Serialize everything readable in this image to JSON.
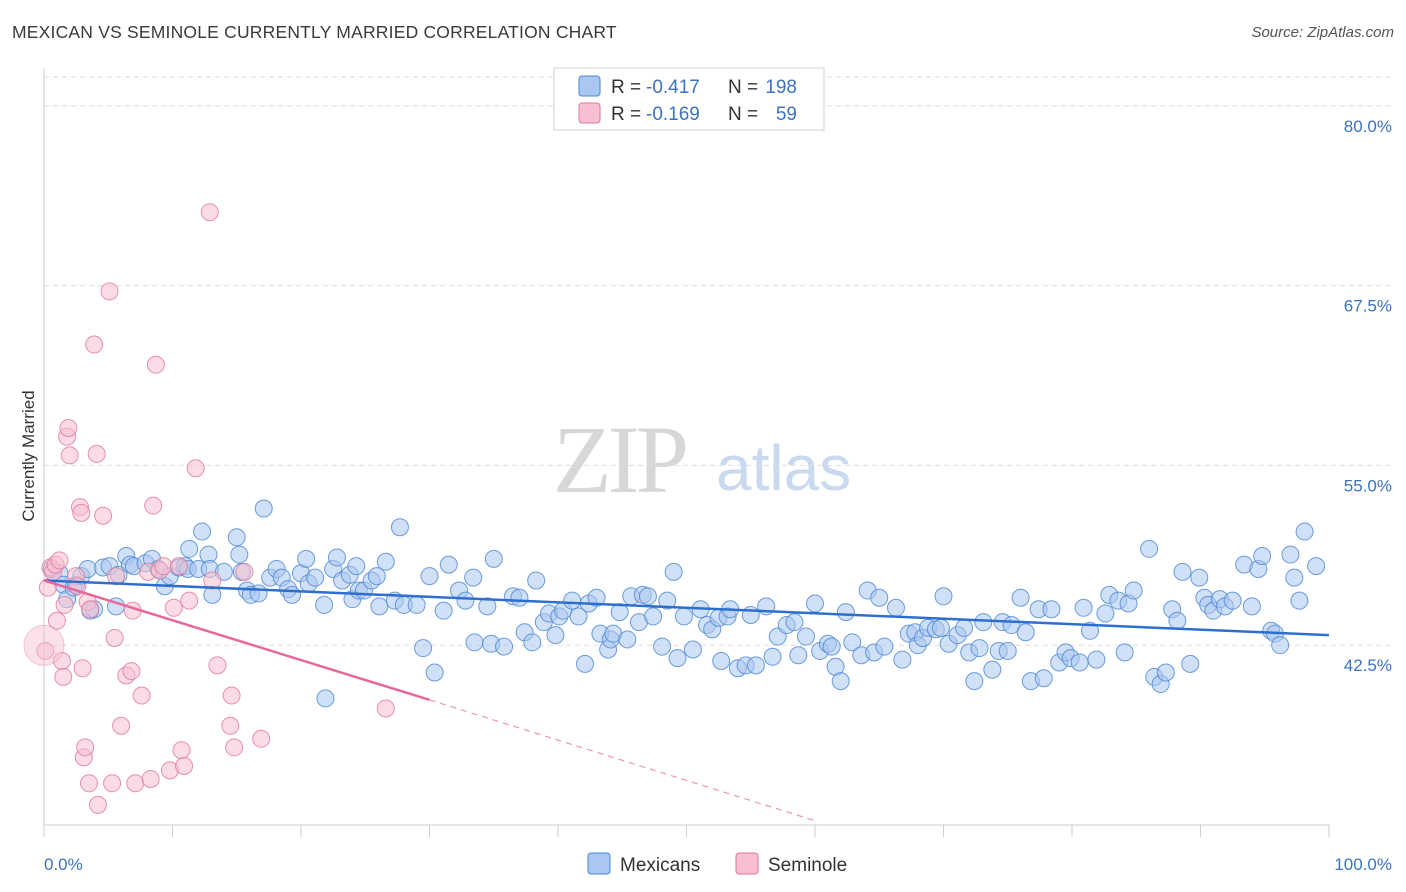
{
  "header": {
    "title": "MEXICAN VS SEMINOLE CURRENTLY MARRIED CORRELATION CHART",
    "source": "Source: ZipAtlas.com"
  },
  "watermark": {
    "zip": "ZIP",
    "atlas": "atlas"
  },
  "legend": {
    "rows": [
      {
        "r_label": "R =",
        "r_value": "-0.417",
        "n_label": "N =",
        "n_value": "198",
        "color": "#a9c7f0",
        "stroke": "#4a86d4"
      },
      {
        "r_label": "R =",
        "r_value": "-0.169",
        "n_label": "N =",
        "n_value": "59",
        "color": "#f7bfd0",
        "stroke": "#e07898"
      }
    ]
  },
  "chart_data": {
    "type": "scatter",
    "title": "MEXICAN VS SEMINOLE CURRENTLY MARRIED CORRELATION CHART",
    "xlabel": "",
    "ylabel": "Currently Married",
    "xlim": [
      0,
      100
    ],
    "ylim": [
      30.0,
      82.0
    ],
    "y_ticks": [
      42.5,
      55.0,
      67.5,
      80.0
    ],
    "y_tick_labels": [
      "42.5%",
      "55.0%",
      "67.5%",
      "80.0%"
    ],
    "x_tick_labels": [
      "0.0%",
      "100.0%"
    ],
    "grid": true,
    "legend_position": "bottom",
    "series": [
      {
        "name": "Mexicans",
        "color": "#a9c7f0",
        "stroke": "#4a86d4",
        "trend": {
          "x": [
            0,
            100
          ],
          "y": [
            47.0,
            43.2
          ],
          "color": "#2d6fcf"
        },
        "points": [
          [
            0.6,
            47.8
          ],
          [
            1.2,
            47.5
          ],
          [
            1.5,
            46.7
          ],
          [
            1.8,
            45.7
          ],
          [
            2.3,
            46.5
          ],
          [
            2.5,
            46.7
          ],
          [
            2.9,
            47.3
          ],
          [
            3.4,
            47.8
          ],
          [
            3.6,
            44.9
          ],
          [
            3.9,
            45.0
          ],
          [
            4.6,
            47.9
          ],
          [
            5.1,
            48.0
          ],
          [
            5.6,
            45.2
          ],
          [
            5.8,
            47.4
          ],
          [
            6.4,
            48.7
          ],
          [
            6.7,
            48.1
          ],
          [
            7.0,
            48.0
          ],
          [
            7.9,
            48.2
          ],
          [
            8.4,
            48.5
          ],
          [
            8.9,
            47.8
          ],
          [
            9.4,
            46.6
          ],
          [
            9.8,
            47.3
          ],
          [
            10.5,
            47.9
          ],
          [
            11.0,
            48.0
          ],
          [
            11.2,
            47.8
          ],
          [
            11.3,
            49.2
          ],
          [
            12.0,
            47.8
          ],
          [
            12.3,
            50.4
          ],
          [
            12.8,
            48.8
          ],
          [
            12.9,
            47.8
          ],
          [
            13.1,
            46.0
          ],
          [
            14.0,
            47.6
          ],
          [
            15.0,
            50.0
          ],
          [
            15.2,
            48.8
          ],
          [
            15.4,
            47.6
          ],
          [
            15.8,
            46.3
          ],
          [
            16.1,
            46.0
          ],
          [
            16.7,
            46.1
          ],
          [
            17.1,
            52.0
          ],
          [
            17.6,
            47.2
          ],
          [
            18.1,
            47.8
          ],
          [
            18.5,
            47.2
          ],
          [
            19.0,
            46.4
          ],
          [
            19.3,
            46.0
          ],
          [
            20.0,
            47.5
          ],
          [
            20.4,
            48.5
          ],
          [
            20.6,
            46.8
          ],
          [
            21.1,
            47.2
          ],
          [
            21.8,
            45.3
          ],
          [
            21.9,
            38.8
          ],
          [
            22.5,
            47.8
          ],
          [
            22.8,
            48.6
          ],
          [
            23.2,
            47.0
          ],
          [
            23.8,
            47.4
          ],
          [
            24.0,
            45.7
          ],
          [
            24.3,
            48.0
          ],
          [
            24.5,
            46.3
          ],
          [
            24.9,
            46.3
          ],
          [
            25.5,
            47.0
          ],
          [
            25.9,
            47.3
          ],
          [
            26.1,
            45.2
          ],
          [
            26.6,
            48.3
          ],
          [
            27.3,
            45.6
          ],
          [
            27.7,
            50.7
          ],
          [
            28.0,
            45.3
          ],
          [
            29.0,
            45.3
          ],
          [
            29.5,
            42.3
          ],
          [
            30.0,
            47.3
          ],
          [
            30.4,
            40.6
          ],
          [
            31.1,
            44.9
          ],
          [
            31.5,
            48.1
          ],
          [
            32.3,
            46.3
          ],
          [
            32.8,
            45.6
          ],
          [
            33.4,
            47.2
          ],
          [
            33.5,
            42.7
          ],
          [
            34.5,
            45.2
          ],
          [
            34.8,
            42.6
          ],
          [
            35.0,
            48.5
          ],
          [
            35.8,
            42.4
          ],
          [
            36.5,
            45.9
          ],
          [
            37.0,
            45.8
          ],
          [
            37.4,
            43.4
          ],
          [
            38.0,
            42.7
          ],
          [
            38.3,
            47.0
          ],
          [
            38.9,
            44.1
          ],
          [
            39.3,
            44.7
          ],
          [
            39.8,
            43.2
          ],
          [
            40.1,
            44.5
          ],
          [
            40.4,
            44.9
          ],
          [
            41.1,
            45.6
          ],
          [
            41.6,
            44.5
          ],
          [
            42.1,
            41.2
          ],
          [
            42.4,
            45.4
          ],
          [
            43.0,
            45.8
          ],
          [
            43.3,
            43.3
          ],
          [
            43.9,
            42.2
          ],
          [
            44.1,
            42.9
          ],
          [
            44.3,
            43.3
          ],
          [
            44.8,
            44.8
          ],
          [
            45.4,
            42.9
          ],
          [
            45.7,
            45.9
          ],
          [
            46.3,
            44.1
          ],
          [
            46.6,
            46.0
          ],
          [
            47.0,
            45.9
          ],
          [
            47.4,
            44.5
          ],
          [
            48.1,
            42.4
          ],
          [
            48.5,
            45.6
          ],
          [
            49.0,
            47.6
          ],
          [
            49.3,
            41.6
          ],
          [
            49.8,
            44.5
          ],
          [
            50.5,
            42.2
          ],
          [
            51.1,
            45.0
          ],
          [
            51.6,
            43.9
          ],
          [
            52.0,
            43.6
          ],
          [
            52.5,
            44.4
          ],
          [
            52.7,
            41.4
          ],
          [
            53.2,
            44.5
          ],
          [
            53.4,
            45.0
          ],
          [
            54.0,
            40.9
          ],
          [
            54.6,
            41.1
          ],
          [
            55.0,
            44.6
          ],
          [
            55.4,
            41.1
          ],
          [
            56.2,
            45.2
          ],
          [
            56.7,
            41.7
          ],
          [
            57.1,
            43.1
          ],
          [
            57.8,
            43.9
          ],
          [
            58.4,
            44.1
          ],
          [
            58.7,
            41.8
          ],
          [
            59.3,
            43.1
          ],
          [
            60.0,
            45.4
          ],
          [
            60.4,
            42.1
          ],
          [
            61.0,
            42.6
          ],
          [
            61.3,
            42.4
          ],
          [
            61.6,
            41.0
          ],
          [
            62.0,
            40.0
          ],
          [
            62.4,
            44.8
          ],
          [
            62.9,
            42.7
          ],
          [
            63.6,
            41.8
          ],
          [
            64.1,
            46.3
          ],
          [
            64.6,
            42.0
          ],
          [
            65.0,
            45.8
          ],
          [
            65.4,
            42.4
          ],
          [
            66.3,
            45.1
          ],
          [
            66.8,
            41.5
          ],
          [
            67.3,
            43.3
          ],
          [
            67.8,
            43.4
          ],
          [
            68.0,
            42.5
          ],
          [
            68.4,
            43.0
          ],
          [
            68.8,
            43.7
          ],
          [
            69.4,
            43.6
          ],
          [
            69.8,
            43.7
          ],
          [
            70.0,
            45.9
          ],
          [
            70.4,
            42.6
          ],
          [
            71.1,
            43.2
          ],
          [
            71.6,
            43.7
          ],
          [
            72.0,
            42.0
          ],
          [
            72.4,
            40.0
          ],
          [
            72.8,
            42.3
          ],
          [
            73.1,
            44.1
          ],
          [
            73.8,
            40.8
          ],
          [
            74.3,
            42.1
          ],
          [
            74.6,
            44.1
          ],
          [
            75.0,
            42.1
          ],
          [
            75.3,
            43.9
          ],
          [
            76.0,
            45.8
          ],
          [
            76.4,
            43.4
          ],
          [
            76.8,
            40.0
          ],
          [
            77.4,
            45.0
          ],
          [
            77.8,
            40.2
          ],
          [
            78.4,
            45.0
          ],
          [
            79.0,
            41.3
          ],
          [
            79.5,
            42.0
          ],
          [
            79.9,
            41.6
          ],
          [
            80.6,
            41.3
          ],
          [
            80.9,
            45.1
          ],
          [
            81.4,
            43.5
          ],
          [
            81.9,
            41.5
          ],
          [
            82.6,
            44.7
          ],
          [
            82.9,
            46.0
          ],
          [
            83.6,
            45.6
          ],
          [
            84.1,
            42.0
          ],
          [
            84.4,
            45.4
          ],
          [
            84.8,
            46.3
          ],
          [
            86.0,
            49.2
          ],
          [
            86.4,
            40.3
          ],
          [
            86.9,
            39.8
          ],
          [
            87.3,
            40.6
          ],
          [
            87.8,
            45.0
          ],
          [
            88.2,
            44.2
          ],
          [
            88.6,
            47.6
          ],
          [
            89.2,
            41.2
          ],
          [
            89.9,
            47.2
          ],
          [
            90.3,
            45.8
          ],
          [
            90.6,
            45.3
          ],
          [
            91.0,
            44.9
          ],
          [
            91.5,
            45.7
          ],
          [
            91.9,
            45.2
          ],
          [
            92.5,
            45.6
          ],
          [
            93.4,
            48.1
          ],
          [
            94.0,
            45.2
          ],
          [
            94.5,
            47.8
          ],
          [
            94.8,
            48.7
          ],
          [
            95.5,
            43.5
          ],
          [
            95.8,
            43.3
          ],
          [
            96.2,
            42.5
          ],
          [
            97.0,
            48.8
          ],
          [
            97.3,
            47.2
          ],
          [
            97.7,
            45.6
          ],
          [
            98.1,
            50.4
          ],
          [
            99.0,
            48.0
          ]
        ]
      },
      {
        "name": "Seminole",
        "color": "#f7bfd0",
        "stroke": "#e07898",
        "trend": {
          "x": [
            0,
            30
          ],
          "y": [
            47.0,
            38.7
          ],
          "color": "#e8679a"
        },
        "trend_dashed": {
          "x": [
            30,
            60
          ],
          "y": [
            38.7,
            30.3
          ]
        },
        "points": [
          [
            0.1,
            42.1
          ],
          [
            0.3,
            46.5
          ],
          [
            0.5,
            47.9
          ],
          [
            0.7,
            47.6
          ],
          [
            0.9,
            48.1
          ],
          [
            1.0,
            44.2
          ],
          [
            1.2,
            48.4
          ],
          [
            1.4,
            41.4
          ],
          [
            1.5,
            40.3
          ],
          [
            1.6,
            45.3
          ],
          [
            1.8,
            57.0
          ],
          [
            1.9,
            57.6
          ],
          [
            2.0,
            55.7
          ],
          [
            2.5,
            47.3
          ],
          [
            2.6,
            46.6
          ],
          [
            2.8,
            52.1
          ],
          [
            2.9,
            51.7
          ],
          [
            3.0,
            40.9
          ],
          [
            3.1,
            34.7
          ],
          [
            3.2,
            35.4
          ],
          [
            3.4,
            45.5
          ],
          [
            3.5,
            32.9
          ],
          [
            3.6,
            45.0
          ],
          [
            3.9,
            63.4
          ],
          [
            4.1,
            55.8
          ],
          [
            4.2,
            31.4
          ],
          [
            4.6,
            51.5
          ],
          [
            5.1,
            67.1
          ],
          [
            5.3,
            32.9
          ],
          [
            5.5,
            43.0
          ],
          [
            5.6,
            47.3
          ],
          [
            6.0,
            36.9
          ],
          [
            6.4,
            40.4
          ],
          [
            6.8,
            40.7
          ],
          [
            6.9,
            44.9
          ],
          [
            7.1,
            32.9
          ],
          [
            7.6,
            39.0
          ],
          [
            8.1,
            47.6
          ],
          [
            8.3,
            33.2
          ],
          [
            8.5,
            52.2
          ],
          [
            8.7,
            62.0
          ],
          [
            9.0,
            47.7
          ],
          [
            9.3,
            48.0
          ],
          [
            9.8,
            33.8
          ],
          [
            10.1,
            45.1
          ],
          [
            10.5,
            48.0
          ],
          [
            10.7,
            35.2
          ],
          [
            10.9,
            34.1
          ],
          [
            11.3,
            45.6
          ],
          [
            11.8,
            54.8
          ],
          [
            12.9,
            72.6
          ],
          [
            13.1,
            47.0
          ],
          [
            13.5,
            41.1
          ],
          [
            14.5,
            36.9
          ],
          [
            14.6,
            39.0
          ],
          [
            14.8,
            35.4
          ],
          [
            15.6,
            47.6
          ],
          [
            16.9,
            36.0
          ],
          [
            26.6,
            38.1
          ]
        ]
      }
    ]
  }
}
